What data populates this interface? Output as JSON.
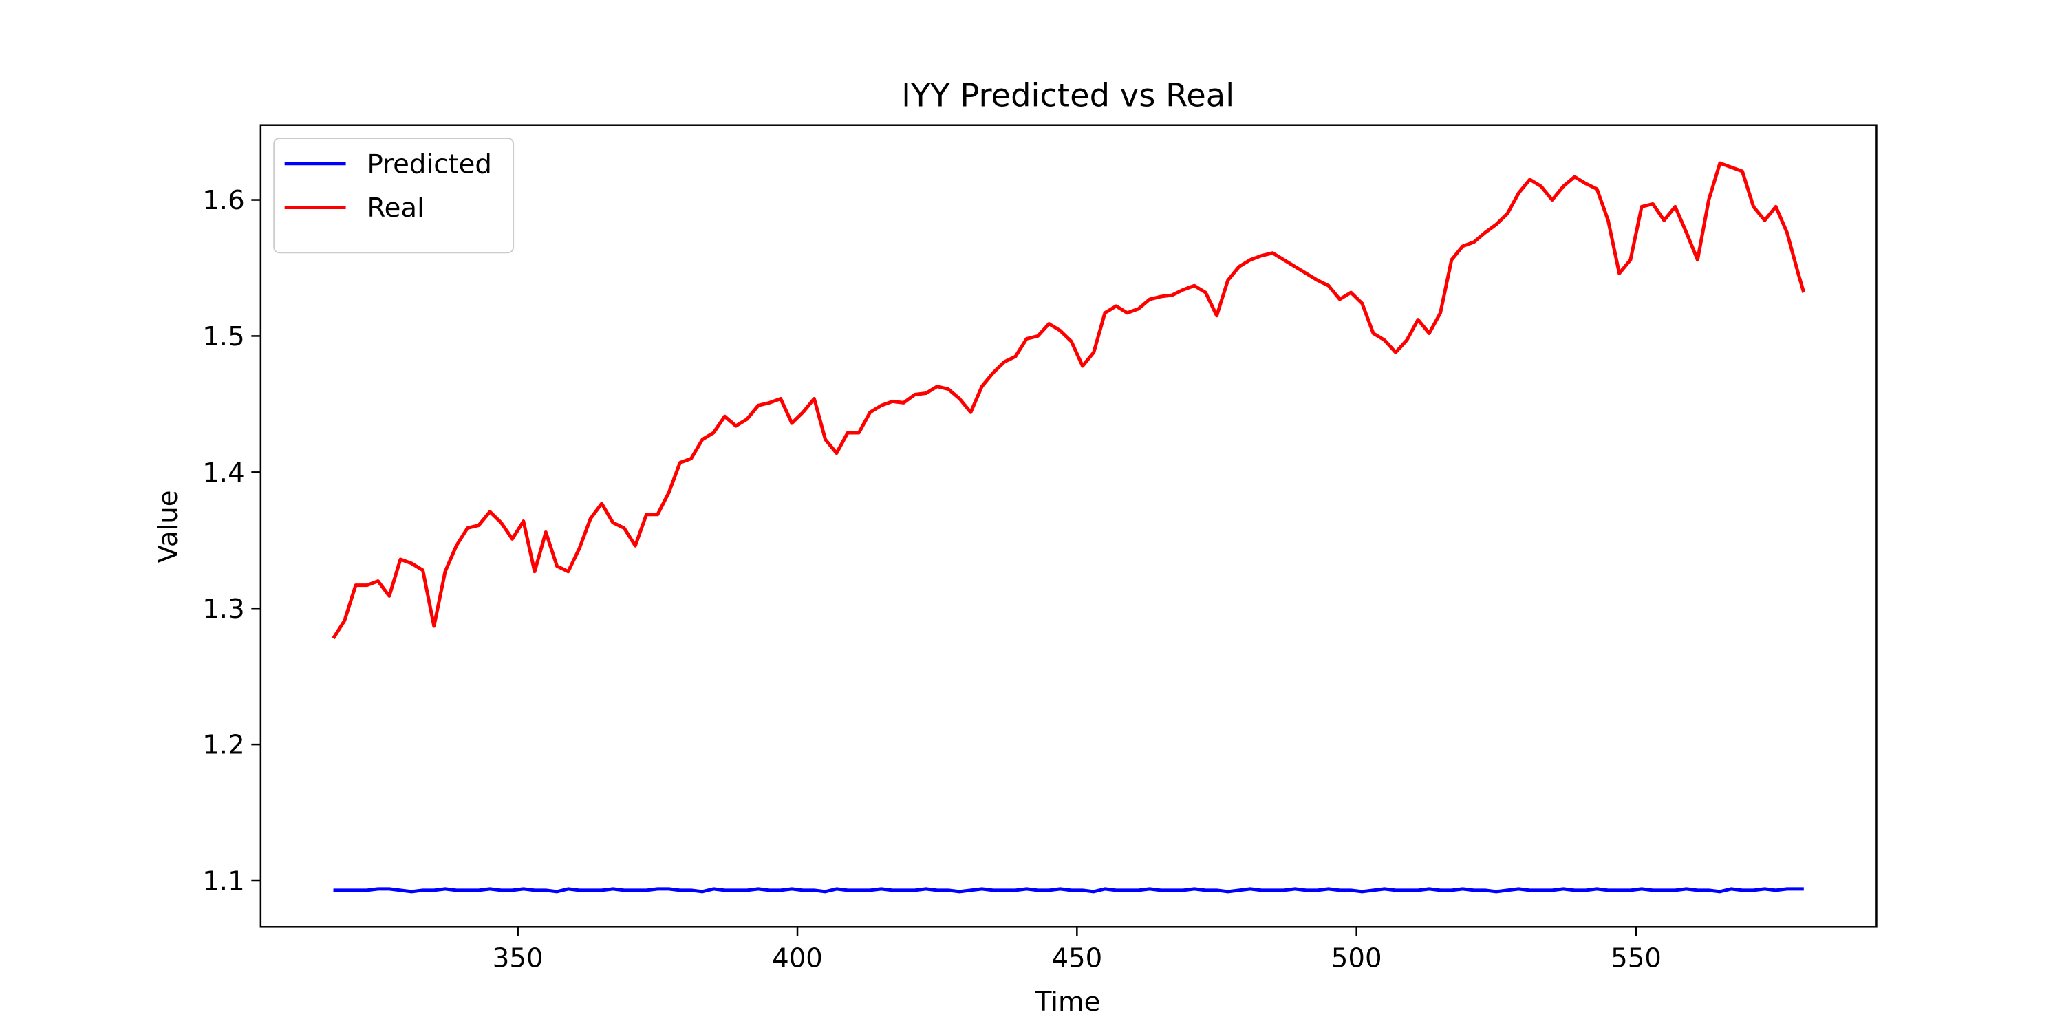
{
  "chart_data": {
    "type": "line",
    "title": "IYY Predicted vs Real",
    "x_label": "Time",
    "y_label": "Value",
    "x": [
      317,
      319,
      321,
      323,
      325,
      327,
      329,
      331,
      333,
      335,
      337,
      339,
      341,
      343,
      345,
      347,
      349,
      351,
      353,
      355,
      357,
      359,
      361,
      363,
      365,
      367,
      369,
      371,
      373,
      375,
      377,
      379,
      381,
      383,
      385,
      387,
      389,
      391,
      393,
      395,
      397,
      399,
      401,
      403,
      405,
      407,
      409,
      411,
      413,
      415,
      417,
      419,
      421,
      423,
      425,
      427,
      429,
      431,
      433,
      435,
      437,
      439,
      441,
      443,
      445,
      447,
      449,
      451,
      453,
      455,
      457,
      459,
      461,
      463,
      465,
      467,
      469,
      471,
      473,
      475,
      477,
      479,
      481,
      483,
      485,
      487,
      489,
      491,
      493,
      495,
      497,
      499,
      501,
      503,
      505,
      507,
      509,
      511,
      513,
      515,
      517,
      519,
      521,
      523,
      525,
      527,
      529,
      531,
      533,
      535,
      537,
      539,
      541,
      543,
      545,
      547,
      549,
      551,
      553,
      555,
      557,
      559,
      561,
      563,
      565,
      567,
      569,
      571,
      573,
      575,
      577,
      579,
      580
    ],
    "series": [
      {
        "name": "Predicted",
        "color": "#0000ff",
        "values": [
          1.093,
          1.093,
          1.093,
          1.093,
          1.094,
          1.094,
          1.093,
          1.092,
          1.093,
          1.093,
          1.094,
          1.093,
          1.093,
          1.093,
          1.094,
          1.093,
          1.093,
          1.094,
          1.093,
          1.093,
          1.092,
          1.094,
          1.093,
          1.093,
          1.093,
          1.094,
          1.093,
          1.093,
          1.093,
          1.094,
          1.094,
          1.093,
          1.093,
          1.092,
          1.094,
          1.093,
          1.093,
          1.093,
          1.094,
          1.093,
          1.093,
          1.094,
          1.093,
          1.093,
          1.092,
          1.094,
          1.093,
          1.093,
          1.093,
          1.094,
          1.093,
          1.093,
          1.093,
          1.094,
          1.093,
          1.093,
          1.092,
          1.093,
          1.094,
          1.093,
          1.093,
          1.093,
          1.094,
          1.093,
          1.093,
          1.094,
          1.093,
          1.093,
          1.092,
          1.094,
          1.093,
          1.093,
          1.093,
          1.094,
          1.093,
          1.093,
          1.093,
          1.094,
          1.093,
          1.093,
          1.092,
          1.093,
          1.094,
          1.093,
          1.093,
          1.093,
          1.094,
          1.093,
          1.093,
          1.094,
          1.093,
          1.093,
          1.092,
          1.093,
          1.094,
          1.093,
          1.093,
          1.093,
          1.094,
          1.093,
          1.093,
          1.094,
          1.093,
          1.093,
          1.092,
          1.093,
          1.094,
          1.093,
          1.093,
          1.093,
          1.094,
          1.093,
          1.093,
          1.094,
          1.093,
          1.093,
          1.093,
          1.094,
          1.093,
          1.093,
          1.093,
          1.094,
          1.093,
          1.093,
          1.092,
          1.094,
          1.093,
          1.093,
          1.094,
          1.093,
          1.094,
          1.094,
          1.094
        ]
      },
      {
        "name": "Real",
        "color": "#ff0000",
        "values": [
          1.278,
          1.291,
          1.317,
          1.317,
          1.32,
          1.309,
          1.336,
          1.333,
          1.328,
          1.287,
          1.327,
          1.346,
          1.359,
          1.361,
          1.371,
          1.363,
          1.351,
          1.364,
          1.327,
          1.356,
          1.331,
          1.327,
          1.344,
          1.366,
          1.377,
          1.363,
          1.359,
          1.346,
          1.369,
          1.369,
          1.385,
          1.407,
          1.41,
          1.424,
          1.429,
          1.441,
          1.434,
          1.439,
          1.449,
          1.451,
          1.454,
          1.436,
          1.444,
          1.454,
          1.424,
          1.414,
          1.429,
          1.429,
          1.444,
          1.449,
          1.452,
          1.451,
          1.457,
          1.458,
          1.463,
          1.461,
          1.454,
          1.444,
          1.463,
          1.473,
          1.481,
          1.485,
          1.498,
          1.5,
          1.509,
          1.504,
          1.496,
          1.478,
          1.488,
          1.517,
          1.522,
          1.517,
          1.52,
          1.527,
          1.529,
          1.53,
          1.534,
          1.537,
          1.532,
          1.515,
          1.541,
          1.551,
          1.556,
          1.559,
          1.561,
          1.556,
          1.551,
          1.546,
          1.541,
          1.537,
          1.527,
          1.532,
          1.524,
          1.502,
          1.497,
          1.488,
          1.497,
          1.512,
          1.502,
          1.517,
          1.556,
          1.566,
          1.569,
          1.576,
          1.582,
          1.59,
          1.605,
          1.615,
          1.61,
          1.6,
          1.61,
          1.617,
          1.612,
          1.608,
          1.585,
          1.546,
          1.556,
          1.595,
          1.597,
          1.585,
          1.595,
          1.576,
          1.556,
          1.6,
          1.627,
          1.624,
          1.621,
          1.595,
          1.585,
          1.595,
          1.576,
          1.546,
          1.532
        ]
      }
    ],
    "xlim": [
      304,
      593
    ],
    "xticks": [
      350,
      400,
      450,
      500,
      550
    ],
    "ylim": [
      1.066,
      1.655
    ],
    "yticks": [
      1.1,
      1.2,
      1.3,
      1.4,
      1.5,
      1.6
    ],
    "legend": "upper left",
    "grid": false
  }
}
